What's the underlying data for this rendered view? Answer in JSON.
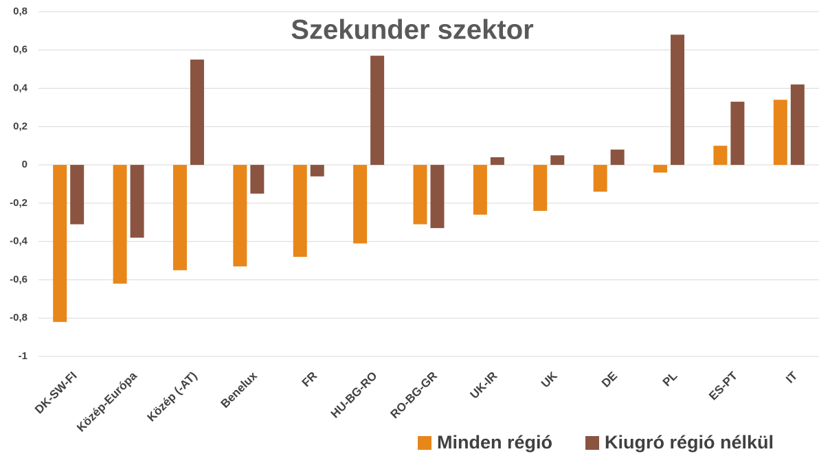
{
  "chart_data": {
    "type": "bar",
    "title": "Szekunder szektor",
    "categories": [
      "DK-SW-FI",
      "Közép-Európa",
      "Közép (-AT)",
      "Benelux",
      "FR",
      "HU-BG-RO",
      "RO-BG-GR",
      "UK-IR",
      "UK",
      "DE",
      "PL",
      "ES-PT",
      "IT"
    ],
    "series": [
      {
        "name": "Minden régió",
        "color": "#e8861a",
        "values": [
          -0.82,
          -0.62,
          -0.55,
          -0.53,
          -0.48,
          -0.41,
          -0.31,
          -0.26,
          -0.24,
          -0.14,
          -0.04,
          0.1,
          0.34
        ]
      },
      {
        "name": "Kiugró régió nélkül",
        "color": "#8b5440",
        "values": [
          -0.31,
          -0.38,
          0.55,
          -0.15,
          -0.06,
          0.57,
          -0.33,
          0.04,
          0.05,
          0.08,
          0.68,
          0.33,
          0.42
        ]
      }
    ],
    "ylim": [
      -1,
      0.8
    ],
    "yticks": [
      -1,
      {
        "value": -0.8,
        "label": "-0,8"
      },
      {
        "value": -0.6,
        "label": "-0,6"
      },
      {
        "value": -0.4,
        "label": "-0,4"
      },
      {
        "value": -0.2,
        "label": "-0,2"
      },
      0,
      {
        "value": 0.2,
        "label": "0,2"
      },
      {
        "value": 0.4,
        "label": "0,4"
      },
      {
        "value": 0.6,
        "label": "0,6"
      },
      {
        "value": 0.8,
        "label": "0,8"
      }
    ],
    "grid": true,
    "legend": "bottom-right"
  }
}
